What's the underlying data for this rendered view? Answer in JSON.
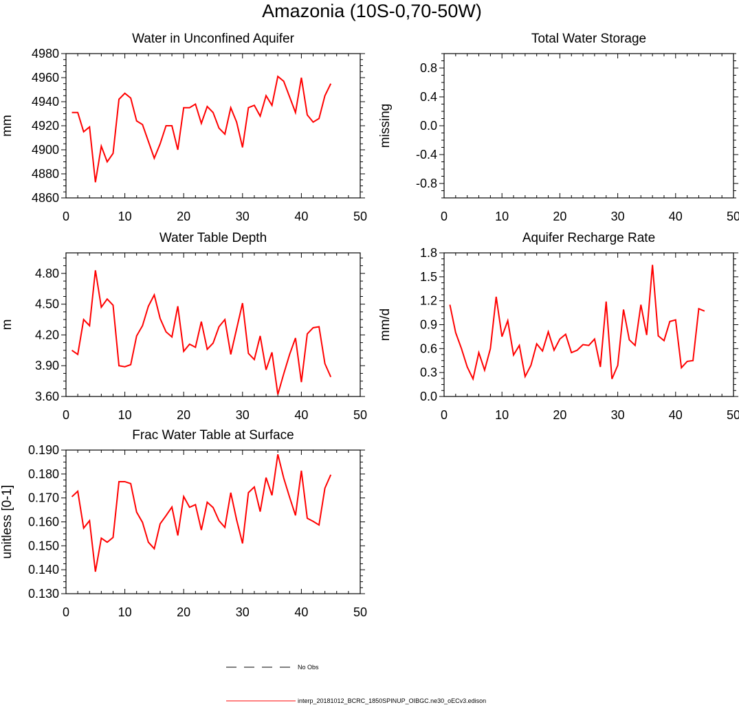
{
  "title": "Amazonia (10S-0,70-50W)",
  "legend": {
    "entries": [
      {
        "label": "No Obs",
        "style": "dashed",
        "color": "#000000"
      },
      {
        "label": "interp_20181012_BCRC_1850SPINUP_OIBGC.ne30_oECv3.edison",
        "style": "solid",
        "color": "#ff0000"
      }
    ]
  },
  "colors": {
    "series": "#ff0000",
    "axes": "#000000",
    "background": "#ffffff"
  },
  "chart_data": [
    {
      "type": "line",
      "title": "Water in Unconfined Aquifer",
      "ylabel": "mm",
      "xlim": [
        0,
        50
      ],
      "ylim": [
        4860,
        4980
      ],
      "xticks": [
        0,
        10,
        20,
        30,
        40,
        50
      ],
      "yticks": [
        "4860",
        "4880",
        "4900",
        "4920",
        "4940",
        "4960",
        "4980"
      ],
      "x": [
        1,
        2,
        3,
        4,
        5,
        6,
        7,
        8,
        9,
        10,
        11,
        12,
        13,
        14,
        15,
        16,
        17,
        18,
        19,
        20,
        21,
        22,
        23,
        24,
        25,
        26,
        27,
        28,
        29,
        30,
        31,
        32,
        33,
        34,
        35,
        36,
        37,
        38,
        39,
        40,
        41,
        42,
        43,
        44,
        45
      ],
      "series": [
        {
          "values": [
            4931,
            4931,
            4915,
            4919,
            4873,
            4903,
            4890,
            4897,
            4942,
            4947,
            4943,
            4924,
            4921,
            4907,
            4893,
            4905,
            4920,
            4920,
            4900,
            4935,
            4935,
            4938,
            4922,
            4936,
            4931,
            4918,
            4913,
            4935,
            4923,
            4902,
            4935,
            4937,
            4928,
            4945,
            4937,
            4961,
            4957,
            4944,
            4931,
            4960,
            4929,
            4923,
            4926,
            4945,
            4955
          ]
        }
      ]
    },
    {
      "type": "line",
      "title": "Total Water Storage",
      "ylabel": "missing",
      "xlim": [
        0,
        50
      ],
      "ylim": [
        -1,
        1
      ],
      "xticks": [
        0,
        10,
        20,
        30,
        40,
        50
      ],
      "yticks": [
        "-0.8",
        "-0.4",
        "0.0",
        "0.4",
        "0.8"
      ],
      "series": []
    },
    {
      "type": "line",
      "title": "Water Table Depth",
      "ylabel": "m",
      "xlim": [
        0,
        50
      ],
      "ylim": [
        3.6,
        5.0
      ],
      "xticks": [
        0,
        10,
        20,
        30,
        40,
        50
      ],
      "yticks": [
        "3.60",
        "3.90",
        "4.20",
        "4.50",
        "4.80"
      ],
      "x": [
        1,
        2,
        3,
        4,
        5,
        6,
        7,
        8,
        9,
        10,
        11,
        12,
        13,
        14,
        15,
        16,
        17,
        18,
        19,
        20,
        21,
        22,
        23,
        24,
        25,
        26,
        27,
        28,
        29,
        30,
        31,
        32,
        33,
        34,
        35,
        36,
        37,
        38,
        39,
        40,
        41,
        42,
        43,
        44,
        45
      ],
      "series": [
        {
          "values": [
            4.05,
            4.01,
            4.35,
            4.29,
            4.83,
            4.47,
            4.55,
            4.49,
            3.9,
            3.89,
            3.91,
            4.19,
            4.29,
            4.48,
            4.59,
            4.36,
            4.23,
            4.18,
            4.48,
            4.04,
            4.11,
            4.08,
            4.33,
            4.06,
            4.12,
            4.28,
            4.35,
            4.01,
            4.26,
            4.51,
            4.02,
            3.96,
            4.19,
            3.86,
            4.03,
            3.62,
            3.82,
            4.01,
            4.17,
            3.74,
            4.21,
            4.27,
            4.28,
            3.92,
            3.79
          ]
        }
      ]
    },
    {
      "type": "line",
      "title": "Aquifer Recharge Rate",
      "ylabel": "mm/d",
      "xlim": [
        0,
        50
      ],
      "ylim": [
        0.0,
        1.8
      ],
      "xticks": [
        0,
        10,
        20,
        30,
        40,
        50
      ],
      "yticks": [
        "0.0",
        "0.3",
        "0.6",
        "0.9",
        "1.2",
        "1.5",
        "1.8"
      ],
      "x": [
        1,
        2,
        3,
        4,
        5,
        6,
        7,
        8,
        9,
        10,
        11,
        12,
        13,
        14,
        15,
        16,
        17,
        18,
        19,
        20,
        21,
        22,
        23,
        24,
        25,
        26,
        27,
        28,
        29,
        30,
        31,
        32,
        33,
        34,
        35,
        36,
        37,
        38,
        39,
        40,
        41,
        42,
        43,
        44,
        45
      ],
      "series": [
        {
          "values": [
            1.15,
            0.8,
            0.6,
            0.37,
            0.22,
            0.55,
            0.33,
            0.6,
            1.25,
            0.75,
            0.95,
            0.52,
            0.64,
            0.25,
            0.39,
            0.66,
            0.57,
            0.81,
            0.58,
            0.72,
            0.78,
            0.55,
            0.58,
            0.65,
            0.64,
            0.72,
            0.37,
            1.19,
            0.22,
            0.39,
            1.09,
            0.71,
            0.64,
            1.15,
            0.77,
            1.65,
            0.76,
            0.7,
            0.94,
            0.96,
            0.36,
            0.44,
            0.45,
            1.1,
            1.07
          ]
        }
      ]
    },
    {
      "type": "line",
      "title": "Frac Water Table at Surface",
      "ylabel": "unitless [0-1]",
      "xlim": [
        0,
        50
      ],
      "ylim": [
        0.13,
        0.19
      ],
      "xticks": [
        0,
        10,
        20,
        30,
        40,
        50
      ],
      "yticks": [
        "0.130",
        "0.140",
        "0.150",
        "0.160",
        "0.170",
        "0.180",
        "0.190"
      ],
      "x": [
        1,
        2,
        3,
        4,
        5,
        6,
        7,
        8,
        9,
        10,
        11,
        12,
        13,
        14,
        15,
        16,
        17,
        18,
        19,
        20,
        21,
        22,
        23,
        24,
        25,
        26,
        27,
        28,
        29,
        30,
        31,
        32,
        33,
        34,
        35,
        36,
        37,
        38,
        39,
        40,
        41,
        42,
        43,
        44,
        45
      ],
      "series": [
        {
          "values": [
            0.1705,
            0.1728,
            0.1574,
            0.1605,
            0.1392,
            0.1532,
            0.1515,
            0.1535,
            0.1768,
            0.1768,
            0.176,
            0.1641,
            0.1598,
            0.1515,
            0.1488,
            0.1592,
            0.1626,
            0.1662,
            0.1543,
            0.1706,
            0.1661,
            0.1672,
            0.1566,
            0.1682,
            0.166,
            0.1605,
            0.1577,
            0.1722,
            0.1608,
            0.151,
            0.1722,
            0.1746,
            0.1643,
            0.1785,
            0.1711,
            0.1882,
            0.1783,
            0.1703,
            0.1627,
            0.1814,
            0.1615,
            0.1602,
            0.1587,
            0.1741,
            0.1797
          ]
        }
      ]
    }
  ]
}
